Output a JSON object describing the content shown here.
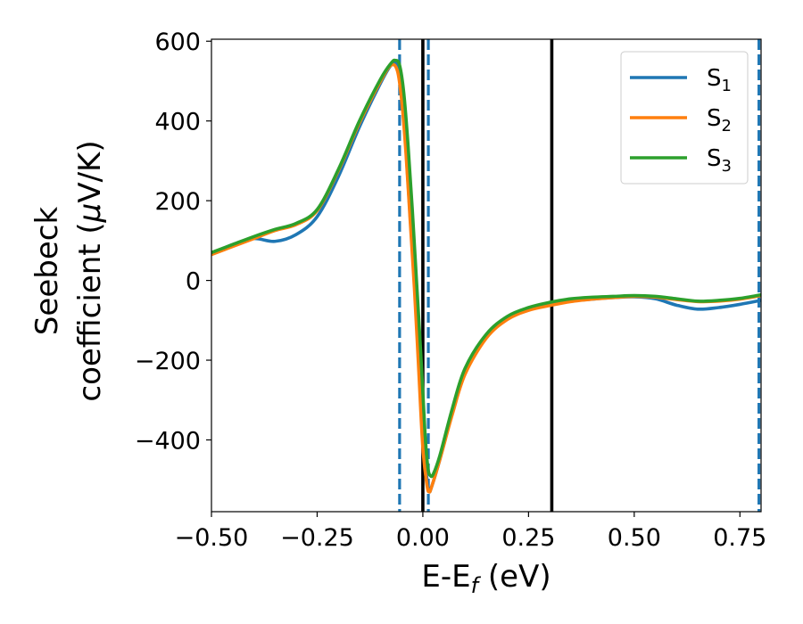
{
  "chart_data": {
    "type": "line",
    "xlabel": {
      "main": "E-E",
      "sub": "f",
      "suffix": " (eV)"
    },
    "ylabel": {
      "line1": "Seebeck",
      "line2_prefix": "coefficient  (",
      "mu": "μ",
      "line2_suffix": "V/K)"
    },
    "xlim": [
      -0.5,
      0.8
    ],
    "ylim": [
      -580,
      605
    ],
    "xticks": [
      -0.5,
      -0.25,
      0.0,
      0.25,
      0.5,
      0.75
    ],
    "xtick_labels": [
      "−0.50",
      "−0.25",
      "0.00",
      "0.25",
      "0.50",
      "0.75"
    ],
    "yticks": [
      -400,
      -200,
      0,
      200,
      400,
      600
    ],
    "ytick_labels": [
      "−400",
      "−200",
      "0",
      "200",
      "400",
      "600"
    ],
    "grid": false,
    "legend_position": "top-right",
    "vlines": [
      {
        "x": -0.055,
        "style": "dashed",
        "color": "#1f77b4"
      },
      {
        "x": 0.013,
        "style": "dashed",
        "color": "#1f77b4"
      },
      {
        "x": 0.795,
        "style": "dashed",
        "color": "#1f77b4"
      },
      {
        "x": 0.0,
        "style": "solid",
        "color": "#000000"
      },
      {
        "x": 0.305,
        "style": "solid",
        "color": "#000000"
      }
    ],
    "series": [
      {
        "name": "S1",
        "label_base": "S",
        "label_sub": "1",
        "color": "#1f77b4",
        "points": [
          [
            -0.5,
            68
          ],
          [
            -0.45,
            90
          ],
          [
            -0.4,
            105
          ],
          [
            -0.35,
            98
          ],
          [
            -0.3,
            115
          ],
          [
            -0.25,
            160
          ],
          [
            -0.2,
            260
          ],
          [
            -0.15,
            385
          ],
          [
            -0.1,
            495
          ],
          [
            -0.075,
            540
          ],
          [
            -0.06,
            540
          ],
          [
            -0.05,
            470
          ],
          [
            -0.04,
            330
          ],
          [
            -0.03,
            160
          ],
          [
            -0.02,
            0
          ],
          [
            -0.01,
            -200
          ],
          [
            0.0,
            -400
          ],
          [
            0.01,
            -500
          ],
          [
            0.015,
            -528
          ],
          [
            0.02,
            -520
          ],
          [
            0.04,
            -450
          ],
          [
            0.07,
            -330
          ],
          [
            0.1,
            -230
          ],
          [
            0.15,
            -140
          ],
          [
            0.2,
            -95
          ],
          [
            0.25,
            -72
          ],
          [
            0.3,
            -62
          ],
          [
            0.35,
            -52
          ],
          [
            0.4,
            -47
          ],
          [
            0.45,
            -43
          ],
          [
            0.5,
            -41
          ],
          [
            0.55,
            -46
          ],
          [
            0.6,
            -62
          ],
          [
            0.65,
            -72
          ],
          [
            0.7,
            -68
          ],
          [
            0.75,
            -60
          ],
          [
            0.8,
            -50
          ]
        ]
      },
      {
        "name": "S2",
        "label_base": "S",
        "label_sub": "2",
        "color": "#ff7f0e",
        "points": [
          [
            -0.5,
            65
          ],
          [
            -0.45,
            85
          ],
          [
            -0.4,
            105
          ],
          [
            -0.35,
            125
          ],
          [
            -0.3,
            140
          ],
          [
            -0.25,
            175
          ],
          [
            -0.2,
            275
          ],
          [
            -0.15,
            395
          ],
          [
            -0.1,
            500
          ],
          [
            -0.075,
            540
          ],
          [
            -0.06,
            525
          ],
          [
            -0.05,
            450
          ],
          [
            -0.04,
            320
          ],
          [
            -0.03,
            150
          ],
          [
            -0.02,
            -20
          ],
          [
            -0.01,
            -220
          ],
          [
            0.0,
            -420
          ],
          [
            0.01,
            -515
          ],
          [
            0.015,
            -530
          ],
          [
            0.02,
            -520
          ],
          [
            0.04,
            -450
          ],
          [
            0.07,
            -335
          ],
          [
            0.1,
            -235
          ],
          [
            0.15,
            -145
          ],
          [
            0.2,
            -98
          ],
          [
            0.25,
            -75
          ],
          [
            0.3,
            -63
          ],
          [
            0.35,
            -53
          ],
          [
            0.4,
            -47
          ],
          [
            0.45,
            -43
          ],
          [
            0.5,
            -40
          ],
          [
            0.55,
            -42
          ],
          [
            0.6,
            -48
          ],
          [
            0.65,
            -53
          ],
          [
            0.7,
            -52
          ],
          [
            0.75,
            -47
          ],
          [
            0.8,
            -38
          ]
        ]
      },
      {
        "name": "S3",
        "label_base": "S",
        "label_sub": "3",
        "color": "#2ca02c",
        "points": [
          [
            -0.5,
            70
          ],
          [
            -0.45,
            90
          ],
          [
            -0.4,
            110
          ],
          [
            -0.35,
            128
          ],
          [
            -0.3,
            143
          ],
          [
            -0.25,
            178
          ],
          [
            -0.2,
            278
          ],
          [
            -0.15,
            400
          ],
          [
            -0.1,
            505
          ],
          [
            -0.075,
            545
          ],
          [
            -0.065,
            552
          ],
          [
            -0.055,
            540
          ],
          [
            -0.045,
            470
          ],
          [
            -0.035,
            340
          ],
          [
            -0.025,
            180
          ],
          [
            -0.015,
            0
          ],
          [
            -0.005,
            -180
          ],
          [
            0.005,
            -380
          ],
          [
            0.012,
            -470
          ],
          [
            0.018,
            -490
          ],
          [
            0.025,
            -485
          ],
          [
            0.04,
            -440
          ],
          [
            0.07,
            -320
          ],
          [
            0.1,
            -220
          ],
          [
            0.15,
            -135
          ],
          [
            0.2,
            -90
          ],
          [
            0.25,
            -68
          ],
          [
            0.3,
            -55
          ],
          [
            0.35,
            -46
          ],
          [
            0.4,
            -42
          ],
          [
            0.45,
            -40
          ],
          [
            0.5,
            -38
          ],
          [
            0.55,
            -40
          ],
          [
            0.6,
            -46
          ],
          [
            0.65,
            -52
          ],
          [
            0.7,
            -50
          ],
          [
            0.75,
            -45
          ],
          [
            0.8,
            -36
          ]
        ]
      }
    ]
  }
}
